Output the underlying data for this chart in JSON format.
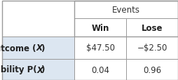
{
  "title_header": "Events",
  "col_headers": [
    "Win",
    "Lose"
  ],
  "row_headers_parts": [
    [
      "Outcome (",
      "X",
      ")"
    ],
    [
      "Probability ",
      "P",
      "(",
      "X",
      ")"
    ]
  ],
  "cells": [
    [
      "$47.50",
      "−$2.50"
    ],
    [
      "0.04",
      "0.96"
    ]
  ],
  "row_label_bg": "#dce6f1",
  "cell_bg": "#ffffff",
  "border_color": "#999999",
  "fig_w": 2.55,
  "fig_h": 1.15,
  "dpi": 100
}
